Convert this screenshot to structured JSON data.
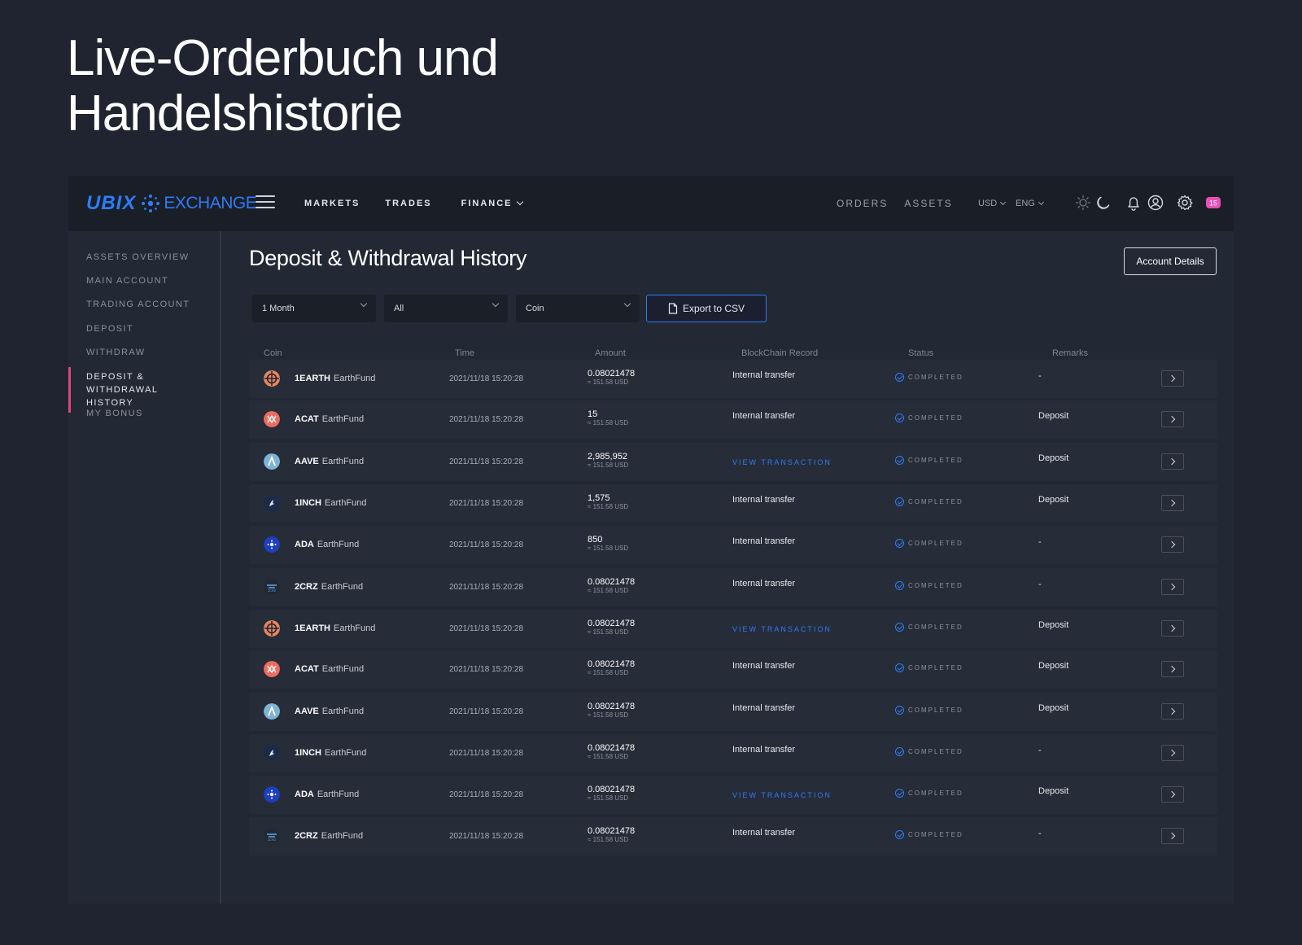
{
  "headline": {
    "line1": "Live-Orderbuch und",
    "line2": "Handelshistorie"
  },
  "topbar": {
    "logo_main": "UBIX",
    "logo_sub": "EXCHANGE",
    "nav": [
      "MARKETS",
      "TRADES",
      "FINANCE"
    ],
    "nav_right": [
      "ORDERS",
      "ASSETS"
    ],
    "currency": "USD",
    "language": "ENG",
    "notification_count": "15",
    "brand_color": "#2e7cf6",
    "badge_color": "#e94fb4"
  },
  "sidebar": {
    "items": [
      "ASSETS OVERVIEW",
      "MAIN ACCOUNT",
      "TRADING ACCOUNT",
      "DEPOSIT",
      "WITHDRAW",
      "DEPOSIT & WITHDRAWAL HISTORY",
      "MY BONUS"
    ],
    "active_index": 5
  },
  "main": {
    "title": "Deposit & Withdrawal History",
    "account_button": "Account Details",
    "filters": {
      "period": "1 Month",
      "type": "All",
      "coin": "Coin"
    },
    "export_label": "Export to CSV",
    "columns": [
      "Coin",
      "Time",
      "Amount",
      "BlockChain Record",
      "Status",
      "Remarks"
    ],
    "rows": [
      {
        "symbol": "1EARTH",
        "name": "EarthFund",
        "icon": "earthfund-icon",
        "time": "2021/11/18 15:20:28",
        "amount": "0.08021478",
        "usd": "≈ 151.58 USD",
        "record": "Internal transfer",
        "record_link": false,
        "status": "COMPLETED",
        "remark": "-"
      },
      {
        "symbol": "ACAT",
        "name": "EarthFund",
        "icon": "acat-icon",
        "time": "2021/11/18 15:20:28",
        "amount": "15",
        "usd": "≈ 151.58 USD",
        "record": "Internal transfer",
        "record_link": false,
        "status": "COMPLETED",
        "remark": "Deposit"
      },
      {
        "symbol": "AAVE",
        "name": "EarthFund",
        "icon": "aave-icon",
        "time": "2021/11/18 15:20:28",
        "amount": "2,985,952",
        "usd": "≈ 151.58 USD",
        "record": "VIEW TRANSACTION",
        "record_link": true,
        "status": "COMPLETED",
        "remark": "Deposit"
      },
      {
        "symbol": "1INCH",
        "name": "EarthFund",
        "icon": "1inch-icon",
        "time": "2021/11/18 15:20:28",
        "amount": "1,575",
        "usd": "≈ 151.58 USD",
        "record": "Internal transfer",
        "record_link": false,
        "status": "COMPLETED",
        "remark": "Deposit"
      },
      {
        "symbol": "ADA",
        "name": "EarthFund",
        "icon": "cardano-icon",
        "time": "2021/11/18 15:20:28",
        "amount": "850",
        "usd": "≈ 151.58 USD",
        "record": "Internal transfer",
        "record_link": false,
        "status": "COMPLETED",
        "remark": "-"
      },
      {
        "symbol": "2CRZ",
        "name": "EarthFund",
        "icon": "2crz-icon",
        "time": "2021/11/18 15:20:28",
        "amount": "0.08021478",
        "usd": "≈ 151.58 USD",
        "record": "Internal transfer",
        "record_link": false,
        "status": "COMPLETED",
        "remark": "-"
      },
      {
        "symbol": "1EARTH",
        "name": "EarthFund",
        "icon": "earthfund-icon",
        "time": "2021/11/18 15:20:28",
        "amount": "0.08021478",
        "usd": "≈ 151.58 USD",
        "record": "VIEW TRANSACTION",
        "record_link": true,
        "status": "COMPLETED",
        "remark": "Deposit"
      },
      {
        "symbol": "ACAT",
        "name": "EarthFund",
        "icon": "acat-icon",
        "time": "2021/11/18 15:20:28",
        "amount": "0.08021478",
        "usd": "≈ 151.58 USD",
        "record": "Internal transfer",
        "record_link": false,
        "status": "COMPLETED",
        "remark": "Deposit"
      },
      {
        "symbol": "AAVE",
        "name": "EarthFund",
        "icon": "aave-icon",
        "time": "2021/11/18 15:20:28",
        "amount": "0.08021478",
        "usd": "≈ 151.58 USD",
        "record": "Internal transfer",
        "record_link": false,
        "status": "COMPLETED",
        "remark": "Deposit"
      },
      {
        "symbol": "1INCH",
        "name": "EarthFund",
        "icon": "1inch-icon",
        "time": "2021/11/18 15:20:28",
        "amount": "0.08021478",
        "usd": "≈ 151.58 USD",
        "record": "Internal transfer",
        "record_link": false,
        "status": "COMPLETED",
        "remark": "-"
      },
      {
        "symbol": "ADA",
        "name": "EarthFund",
        "icon": "cardano-icon",
        "time": "2021/11/18 15:20:28",
        "amount": "0.08021478",
        "usd": "≈ 151.58 USD",
        "record": "VIEW TRANSACTION",
        "record_link": true,
        "status": "COMPLETED",
        "remark": "Deposit"
      },
      {
        "symbol": "2CRZ",
        "name": "EarthFund",
        "icon": "2crz-icon",
        "time": "2021/11/18 15:20:28",
        "amount": "0.08021478",
        "usd": "≈ 151.58 USD",
        "record": "Internal transfer",
        "record_link": false,
        "status": "COMPLETED",
        "remark": "-"
      }
    ]
  }
}
